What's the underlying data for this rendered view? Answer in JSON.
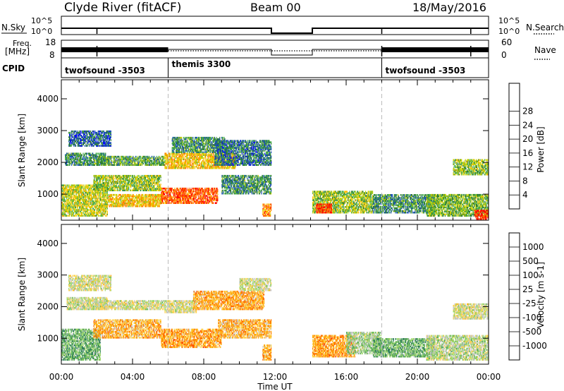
{
  "header": {
    "station": "Clyde River (fitACF)",
    "beam": "Beam 00",
    "date": "18/May/2016"
  },
  "nsky_panel": {
    "left_label": "N.Sky",
    "left_ticks": [
      "10^5",
      "10^0"
    ],
    "right_label": "N.Search",
    "right_ticks": [
      "10^5",
      "10^0"
    ]
  },
  "freq_panel": {
    "left_label_1": "Freq.",
    "left_label_2": "[MHz]",
    "left_ticks": [
      "18",
      "8"
    ],
    "right_label": "Nave",
    "right_ticks": [
      "60",
      "0"
    ]
  },
  "cpid_panel": {
    "label": "CPID",
    "programs": [
      {
        "name": "twofsound",
        "id": "-3503",
        "start": 0.0,
        "end": 6.0
      },
      {
        "name": "themis",
        "id": "3300",
        "start": 6.0,
        "end": 18.0
      },
      {
        "name": "twofsound",
        "id": "-3503",
        "start": 18.0,
        "end": 24.0
      }
    ]
  },
  "chart_data": [
    {
      "type": "heatmap",
      "title": "",
      "xlabel": "Time UT",
      "ylabel": "Slant Range [km]",
      "xlim": [
        0,
        24
      ],
      "ylim": [
        180,
        4600
      ],
      "xticks": [
        "00:00",
        "04:00",
        "08:00",
        "12:00",
        "16:00",
        "20:00",
        "00:00"
      ],
      "yticks": [
        "1000",
        "2000",
        "3000",
        "4000"
      ],
      "colorbar_label": "Power [dB]",
      "colorbar_ticks": [
        "4",
        "8",
        "12",
        "16",
        "20",
        "24",
        "28"
      ],
      "colorbar_colors": [
        "#0000ff",
        "#1a4fb8",
        "#2e7d32",
        "#4caf50",
        "#c8d400",
        "#ffc000",
        "#ff8000",
        "#ff4000",
        "#ff0000"
      ],
      "blobs": [
        {
          "t0": 0.0,
          "t1": 2.6,
          "r0": 300,
          "r1": 1300,
          "level": 0.5
        },
        {
          "t0": 0.2,
          "t1": 2.5,
          "r0": 1900,
          "r1": 2300,
          "level": 0.3
        },
        {
          "t0": 0.4,
          "t1": 2.8,
          "r0": 2500,
          "r1": 3000,
          "level": 0.2
        },
        {
          "t0": 1.8,
          "t1": 5.6,
          "r0": 1100,
          "r1": 1600,
          "level": 0.45
        },
        {
          "t0": 2.0,
          "t1": 5.8,
          "r0": 1900,
          "r1": 2200,
          "level": 0.35
        },
        {
          "t0": 2.6,
          "t1": 5.6,
          "r0": 600,
          "r1": 1000,
          "level": 0.6
        },
        {
          "t0": 5.8,
          "t1": 9.8,
          "r0": 1800,
          "r1": 2300,
          "level": 0.6
        },
        {
          "t0": 5.6,
          "t1": 8.8,
          "r0": 700,
          "r1": 1200,
          "level": 0.8
        },
        {
          "t0": 6.2,
          "t1": 9.2,
          "r0": 2300,
          "r1": 2800,
          "level": 0.3
        },
        {
          "t0": 8.6,
          "t1": 11.8,
          "r0": 1900,
          "r1": 2700,
          "level": 0.25
        },
        {
          "t0": 9.0,
          "t1": 11.8,
          "r0": 1000,
          "r1": 1600,
          "level": 0.3
        },
        {
          "t0": 11.3,
          "t1": 11.8,
          "r0": 300,
          "r1": 700,
          "level": 0.7
        },
        {
          "t0": 14.1,
          "t1": 17.5,
          "r0": 400,
          "r1": 1100,
          "level": 0.45
        },
        {
          "t0": 14.3,
          "t1": 15.2,
          "r0": 400,
          "r1": 700,
          "level": 0.85
        },
        {
          "t0": 17.5,
          "t1": 21.0,
          "r0": 400,
          "r1": 1000,
          "level": 0.3
        },
        {
          "t0": 20.5,
          "t1": 24.0,
          "r0": 300,
          "r1": 1000,
          "level": 0.4
        },
        {
          "t0": 22.0,
          "t1": 24.0,
          "r0": 1600,
          "r1": 2100,
          "level": 0.45
        },
        {
          "t0": 23.2,
          "t1": 24.0,
          "r0": 200,
          "r1": 500,
          "level": 0.9
        }
      ]
    },
    {
      "type": "heatmap",
      "title": "",
      "xlabel": "Time UT",
      "ylabel": "Slant Range [km]",
      "xlim": [
        0,
        24
      ],
      "ylim": [
        180,
        4600
      ],
      "xticks": [
        "00:00",
        "04:00",
        "08:00",
        "12:00",
        "16:00",
        "20:00",
        "00:00"
      ],
      "yticks": [
        "1000",
        "2000",
        "3000",
        "4000"
      ],
      "colorbar_label": "Velocity [m s-1]",
      "colorbar_ticks": [
        "1000",
        "500",
        "100",
        "25",
        "-25",
        "-100",
        "-500",
        "-1000"
      ],
      "colorbar_colors": [
        "#2040c0",
        "#2e7d5a",
        "#5cae5c",
        "#9fd86a",
        "#c8c8c8",
        "#ffd24d",
        "#ffa500",
        "#ff6a00",
        "#ff0000"
      ],
      "blobs": [
        {
          "t0": 0.0,
          "t1": 2.2,
          "r0": 300,
          "r1": 1300,
          "level": 0.3
        },
        {
          "t0": 0.3,
          "t1": 2.6,
          "r0": 1900,
          "r1": 2300,
          "level": 0.48
        },
        {
          "t0": 0.4,
          "t1": 2.8,
          "r0": 2500,
          "r1": 3000,
          "level": 0.5
        },
        {
          "t0": 1.8,
          "t1": 5.6,
          "r0": 1000,
          "r1": 1600,
          "level": 0.68
        },
        {
          "t0": 2.0,
          "t1": 5.8,
          "r0": 1900,
          "r1": 2200,
          "level": 0.5
        },
        {
          "t0": 5.6,
          "t1": 9.0,
          "r0": 700,
          "r1": 1300,
          "level": 0.72
        },
        {
          "t0": 5.8,
          "t1": 7.6,
          "r0": 1800,
          "r1": 2200,
          "level": 0.5
        },
        {
          "t0": 7.4,
          "t1": 11.4,
          "r0": 1900,
          "r1": 2500,
          "level": 0.7
        },
        {
          "t0": 8.8,
          "t1": 11.8,
          "r0": 1000,
          "r1": 1600,
          "level": 0.68
        },
        {
          "t0": 10.0,
          "t1": 11.8,
          "r0": 2500,
          "r1": 2900,
          "level": 0.5
        },
        {
          "t0": 11.3,
          "t1": 11.8,
          "r0": 300,
          "r1": 800,
          "level": 0.68
        },
        {
          "t0": 14.1,
          "t1": 16.5,
          "r0": 400,
          "r1": 1100,
          "level": 0.72
        },
        {
          "t0": 16.0,
          "t1": 18.0,
          "r0": 500,
          "r1": 1200,
          "level": 0.4
        },
        {
          "t0": 17.5,
          "t1": 21.0,
          "r0": 400,
          "r1": 1000,
          "level": 0.3
        },
        {
          "t0": 20.5,
          "t1": 24.0,
          "r0": 300,
          "r1": 1100,
          "level": 0.45
        },
        {
          "t0": 22.0,
          "t1": 24.0,
          "r0": 1600,
          "r1": 2100,
          "level": 0.5
        }
      ]
    }
  ]
}
